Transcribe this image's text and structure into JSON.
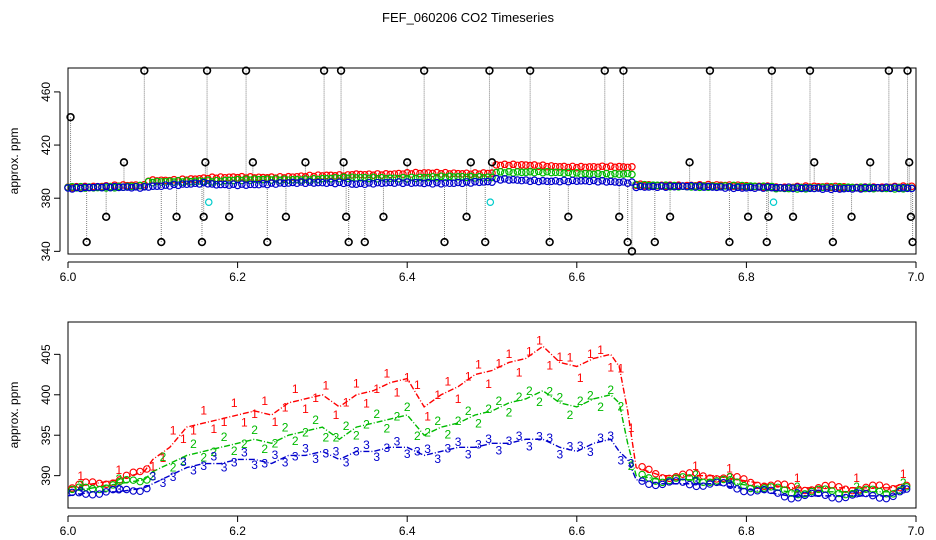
{
  "figure_title": "FEF_060206  CO2 Timeseries",
  "colors": {
    "series1": "#ff0000",
    "series2": "#00bb00",
    "series3": "#0000cc",
    "spike": "#000000",
    "cal": "#00cccc",
    "drop_line": "#808080"
  },
  "chart_data": [
    {
      "type": "scatter",
      "title": "",
      "xlabel": "",
      "ylabel": "approx. ppm",
      "xlim": [
        6.0,
        7.0
      ],
      "ylim": [
        338,
        478
      ],
      "grid": false,
      "xticks": [
        6.0,
        6.2,
        6.4,
        6.6,
        6.8,
        7.0
      ],
      "xtick_labels": [
        "6.0",
        "6.2",
        "6.4",
        "6.6",
        "6.8",
        "7.0"
      ],
      "yticks": [
        340,
        380,
        420,
        460
      ],
      "ytick_labels": [
        "340",
        "380",
        "420",
        "460"
      ],
      "baseline_segments": [
        {
          "x0": 6.0,
          "x1": 6.09,
          "y0": 387.5,
          "y1": 388.5,
          "d2": 0.5,
          "d1": 1.0
        },
        {
          "x0": 6.09,
          "x1": 6.165,
          "y0": 389,
          "y1": 391,
          "d2": 2.5,
          "d1": 4.0
        },
        {
          "x0": 6.165,
          "x1": 6.33,
          "y0": 390,
          "y1": 392,
          "d2": 3.0,
          "d1": 5.0
        },
        {
          "x0": 6.33,
          "x1": 6.5,
          "y0": 391,
          "y1": 392,
          "d2": 4.0,
          "d1": 7.0
        },
        {
          "x0": 6.5,
          "x1": 6.665,
          "y0": 394,
          "y1": 392,
          "d2": 6.0,
          "d1": 11.0
        },
        {
          "x0": 6.665,
          "x1": 6.83,
          "y0": 389,
          "y1": 388,
          "d2": 0.5,
          "d1": 1.0
        },
        {
          "x0": 6.83,
          "x1": 6.995,
          "y0": 387.5,
          "y1": 387.5,
          "d2": 0.3,
          "d1": 0.8
        }
      ],
      "spikes": [
        {
          "x": 6.003,
          "y": 441
        },
        {
          "x": 6.022,
          "y": 347
        },
        {
          "x": 6.045,
          "y": 366
        },
        {
          "x": 6.066,
          "y": 407
        },
        {
          "x": 6.09,
          "y": 476
        },
        {
          "x": 6.11,
          "y": 347
        },
        {
          "x": 6.128,
          "y": 366
        },
        {
          "x": 6.158,
          "y": 347
        },
        {
          "x": 6.16,
          "y": 366
        },
        {
          "x": 6.162,
          "y": 407
        },
        {
          "x": 6.164,
          "y": 476
        },
        {
          "x": 6.19,
          "y": 366
        },
        {
          "x": 6.21,
          "y": 476
        },
        {
          "x": 6.218,
          "y": 407
        },
        {
          "x": 6.235,
          "y": 347
        },
        {
          "x": 6.257,
          "y": 366
        },
        {
          "x": 6.28,
          "y": 407
        },
        {
          "x": 6.302,
          "y": 476
        },
        {
          "x": 6.322,
          "y": 476
        },
        {
          "x": 6.325,
          "y": 407
        },
        {
          "x": 6.328,
          "y": 366
        },
        {
          "x": 6.331,
          "y": 347
        },
        {
          "x": 6.35,
          "y": 347
        },
        {
          "x": 6.372,
          "y": 366
        },
        {
          "x": 6.4,
          "y": 407
        },
        {
          "x": 6.42,
          "y": 476
        },
        {
          "x": 6.444,
          "y": 347
        },
        {
          "x": 6.47,
          "y": 366
        },
        {
          "x": 6.475,
          "y": 407
        },
        {
          "x": 6.492,
          "y": 347
        },
        {
          "x": 6.497,
          "y": 476
        },
        {
          "x": 6.5,
          "y": 407
        },
        {
          "x": 6.545,
          "y": 476
        },
        {
          "x": 6.568,
          "y": 347
        },
        {
          "x": 6.59,
          "y": 366
        },
        {
          "x": 6.633,
          "y": 476
        },
        {
          "x": 6.65,
          "y": 366
        },
        {
          "x": 6.655,
          "y": 476
        },
        {
          "x": 6.66,
          "y": 347
        },
        {
          "x": 6.665,
          "y": 340
        },
        {
          "x": 6.692,
          "y": 347
        },
        {
          "x": 6.71,
          "y": 366
        },
        {
          "x": 6.733,
          "y": 407
        },
        {
          "x": 6.757,
          "y": 476
        },
        {
          "x": 6.78,
          "y": 347
        },
        {
          "x": 6.802,
          "y": 366
        },
        {
          "x": 6.824,
          "y": 347
        },
        {
          "x": 6.826,
          "y": 366
        },
        {
          "x": 6.83,
          "y": 476
        },
        {
          "x": 6.855,
          "y": 366
        },
        {
          "x": 6.875,
          "y": 476
        },
        {
          "x": 6.88,
          "y": 407
        },
        {
          "x": 6.902,
          "y": 347
        },
        {
          "x": 6.924,
          "y": 366
        },
        {
          "x": 6.946,
          "y": 407
        },
        {
          "x": 6.968,
          "y": 476
        },
        {
          "x": 6.99,
          "y": 476
        },
        {
          "x": 6.992,
          "y": 407
        },
        {
          "x": 6.994,
          "y": 366
        },
        {
          "x": 6.996,
          "y": 347
        }
      ],
      "cal_points": [
        {
          "x": 6.166,
          "y": 377
        },
        {
          "x": 6.498,
          "y": 377
        },
        {
          "x": 6.832,
          "y": 377
        }
      ]
    },
    {
      "type": "line",
      "title": "",
      "xlabel": "",
      "ylabel": "approx. ppm",
      "xlim": [
        6.0,
        7.0
      ],
      "ylim": [
        386,
        409
      ],
      "grid": false,
      "xticks": [
        6.0,
        6.2,
        6.4,
        6.6,
        6.8,
        7.0
      ],
      "xtick_labels": [
        "6.0",
        "6.2",
        "6.4",
        "6.6",
        "6.8",
        "7.0"
      ],
      "yticks": [
        390,
        395,
        400,
        405
      ],
      "ytick_labels": [
        "390",
        "395",
        "400",
        "405"
      ],
      "series": [
        {
          "name": "1",
          "label": "1",
          "color": "#ff0000",
          "x": [
            6.0,
            6.03,
            6.06,
            6.09,
            6.1,
            6.12,
            6.14,
            6.16,
            6.18,
            6.2,
            6.22,
            6.24,
            6.26,
            6.28,
            6.3,
            6.32,
            6.34,
            6.36,
            6.38,
            6.4,
            6.42,
            6.44,
            6.46,
            6.48,
            6.5,
            6.52,
            6.54,
            6.56,
            6.58,
            6.6,
            6.62,
            6.64,
            6.65,
            6.66,
            6.67,
            6.7,
            6.73,
            6.76,
            6.79,
            6.82,
            6.85,
            6.88,
            6.91,
            6.94,
            6.97,
            6.985
          ],
          "y": [
            388.5,
            389.0,
            389.5,
            390.5,
            392.0,
            393.5,
            396.0,
            396.5,
            397.0,
            397.5,
            398.0,
            397.5,
            399.0,
            399.5,
            400.0,
            398.5,
            400.0,
            400.5,
            401.5,
            402.0,
            398.5,
            400.0,
            401.0,
            402.5,
            403.0,
            404.0,
            404.5,
            406.0,
            404.0,
            403.5,
            404.5,
            405.0,
            403.5,
            398.0,
            391.0,
            390.0,
            390.0,
            390.0,
            389.5,
            389.0,
            388.5,
            388.5,
            388.5,
            388.5,
            388.5,
            389.0
          ]
        },
        {
          "name": "2",
          "label": "2",
          "color": "#00bb00",
          "x": [
            6.0,
            6.03,
            6.06,
            6.09,
            6.1,
            6.12,
            6.14,
            6.16,
            6.18,
            6.2,
            6.22,
            6.24,
            6.26,
            6.28,
            6.3,
            6.32,
            6.34,
            6.36,
            6.38,
            6.4,
            6.42,
            6.44,
            6.46,
            6.48,
            6.5,
            6.52,
            6.54,
            6.56,
            6.58,
            6.6,
            6.62,
            6.64,
            6.65,
            6.66,
            6.67,
            6.7,
            6.73,
            6.76,
            6.79,
            6.82,
            6.85,
            6.88,
            6.91,
            6.94,
            6.97,
            6.985
          ],
          "y": [
            388.0,
            388.5,
            389.0,
            389.5,
            390.5,
            391.5,
            392.5,
            393.0,
            393.5,
            394.0,
            394.5,
            394.0,
            395.0,
            395.5,
            396.0,
            394.5,
            396.0,
            396.5,
            397.0,
            397.5,
            395.0,
            396.0,
            396.5,
            397.5,
            398.0,
            399.0,
            399.5,
            400.5,
            399.0,
            398.5,
            399.5,
            400.0,
            399.0,
            394.0,
            390.0,
            389.5,
            389.5,
            389.5,
            389.0,
            388.5,
            388.0,
            388.0,
            388.0,
            388.0,
            388.0,
            388.5
          ]
        },
        {
          "name": "3",
          "label": "3",
          "color": "#0000cc",
          "x": [
            6.0,
            6.03,
            6.06,
            6.09,
            6.1,
            6.12,
            6.14,
            6.16,
            6.18,
            6.2,
            6.22,
            6.24,
            6.26,
            6.28,
            6.3,
            6.32,
            6.34,
            6.36,
            6.38,
            6.4,
            6.42,
            6.44,
            6.46,
            6.48,
            6.5,
            6.52,
            6.54,
            6.56,
            6.58,
            6.6,
            6.62,
            6.64,
            6.65,
            6.66,
            6.67,
            6.7,
            6.73,
            6.76,
            6.79,
            6.82,
            6.85,
            6.88,
            6.91,
            6.94,
            6.97,
            6.985
          ],
          "y": [
            387.5,
            388.0,
            388.0,
            388.5,
            389.0,
            390.0,
            391.0,
            391.5,
            391.5,
            392.0,
            392.0,
            391.5,
            392.5,
            392.5,
            393.0,
            392.0,
            393.0,
            393.0,
            393.5,
            393.5,
            392.5,
            393.0,
            393.5,
            393.5,
            394.0,
            394.0,
            394.5,
            394.5,
            393.5,
            393.0,
            394.0,
            394.5,
            393.0,
            392.0,
            389.5,
            389.0,
            389.0,
            389.0,
            388.5,
            388.0,
            387.5,
            387.5,
            387.5,
            387.5,
            387.5,
            388.0
          ]
        }
      ]
    }
  ]
}
